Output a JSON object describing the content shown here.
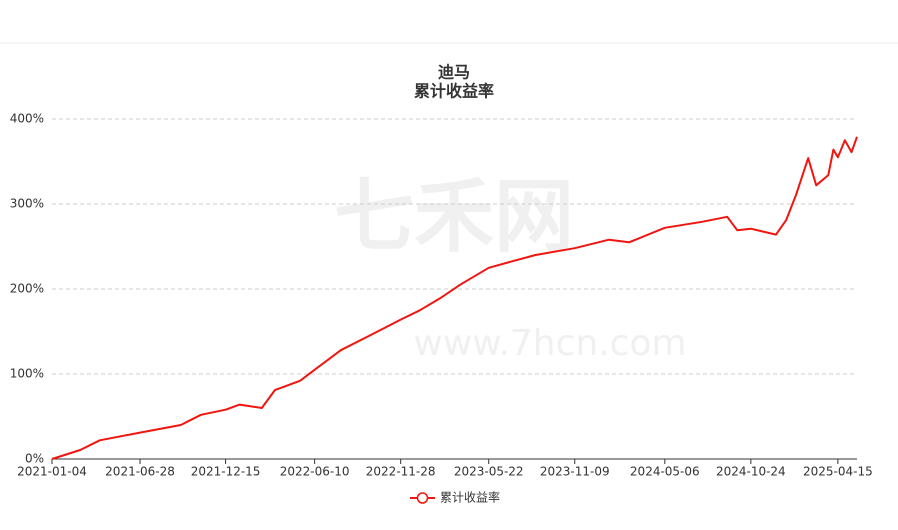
{
  "chart_data": {
    "type": "line",
    "title": "迪马",
    "subtitle": "累计收益率",
    "watermark": {
      "brand": "七禾网",
      "url": "www.7hcn.com"
    },
    "x": [
      "2021-01-04",
      "2021-03-01",
      "2021-04-09",
      "2021-06-28",
      "2021-09-17",
      "2021-10-27",
      "2021-12-15",
      "2022-01-12",
      "2022-02-25",
      "2022-03-23",
      "2022-05-12",
      "2022-06-10",
      "2022-08-01",
      "2022-09-30",
      "2022-11-28",
      "2023-01-05",
      "2023-02-14",
      "2023-03-26",
      "2023-05-22",
      "2023-07-04",
      "2023-08-23",
      "2023-11-09",
      "2024-01-16",
      "2024-02-25",
      "2024-05-06",
      "2024-07-19",
      "2024-09-07",
      "2024-09-27",
      "2024-10-24",
      "2024-12-13",
      "2025-01-02",
      "2025-01-22",
      "2025-02-15",
      "2025-03-03",
      "2025-03-27",
      "2025-04-06",
      "2025-04-15",
      "2025-04-29",
      "2025-05-12",
      "2025-05-23"
    ],
    "series": [
      {
        "name": "累计收益率",
        "color": "#f0150f",
        "values": [
          0,
          10.6,
          22,
          31,
          40,
          52,
          58,
          64,
          60,
          81,
          92,
          105,
          128,
          146,
          164,
          175,
          189,
          205,
          225,
          232,
          240,
          248,
          258,
          255,
          272,
          279,
          285,
          269,
          271,
          264,
          281,
          311,
          354,
          322,
          334,
          364,
          355,
          375,
          361,
          379
        ]
      }
    ],
    "xlim": [
      "2021-01-04",
      "2025-05-23"
    ],
    "xticks": [
      "2021-01-04",
      "2021-06-28",
      "2021-12-15",
      "2022-06-10",
      "2022-11-28",
      "2023-05-22",
      "2023-11-09",
      "2024-05-06",
      "2024-10-24",
      "2025-04-15"
    ],
    "ylim": [
      0,
      400
    ],
    "yticks": [
      {
        "value": 0,
        "label": "0%"
      },
      {
        "value": 100,
        "label": "100%"
      },
      {
        "value": 200,
        "label": "200%"
      },
      {
        "value": 300,
        "label": "300%"
      },
      {
        "value": 400,
        "label": "400%"
      }
    ],
    "grid": true
  }
}
